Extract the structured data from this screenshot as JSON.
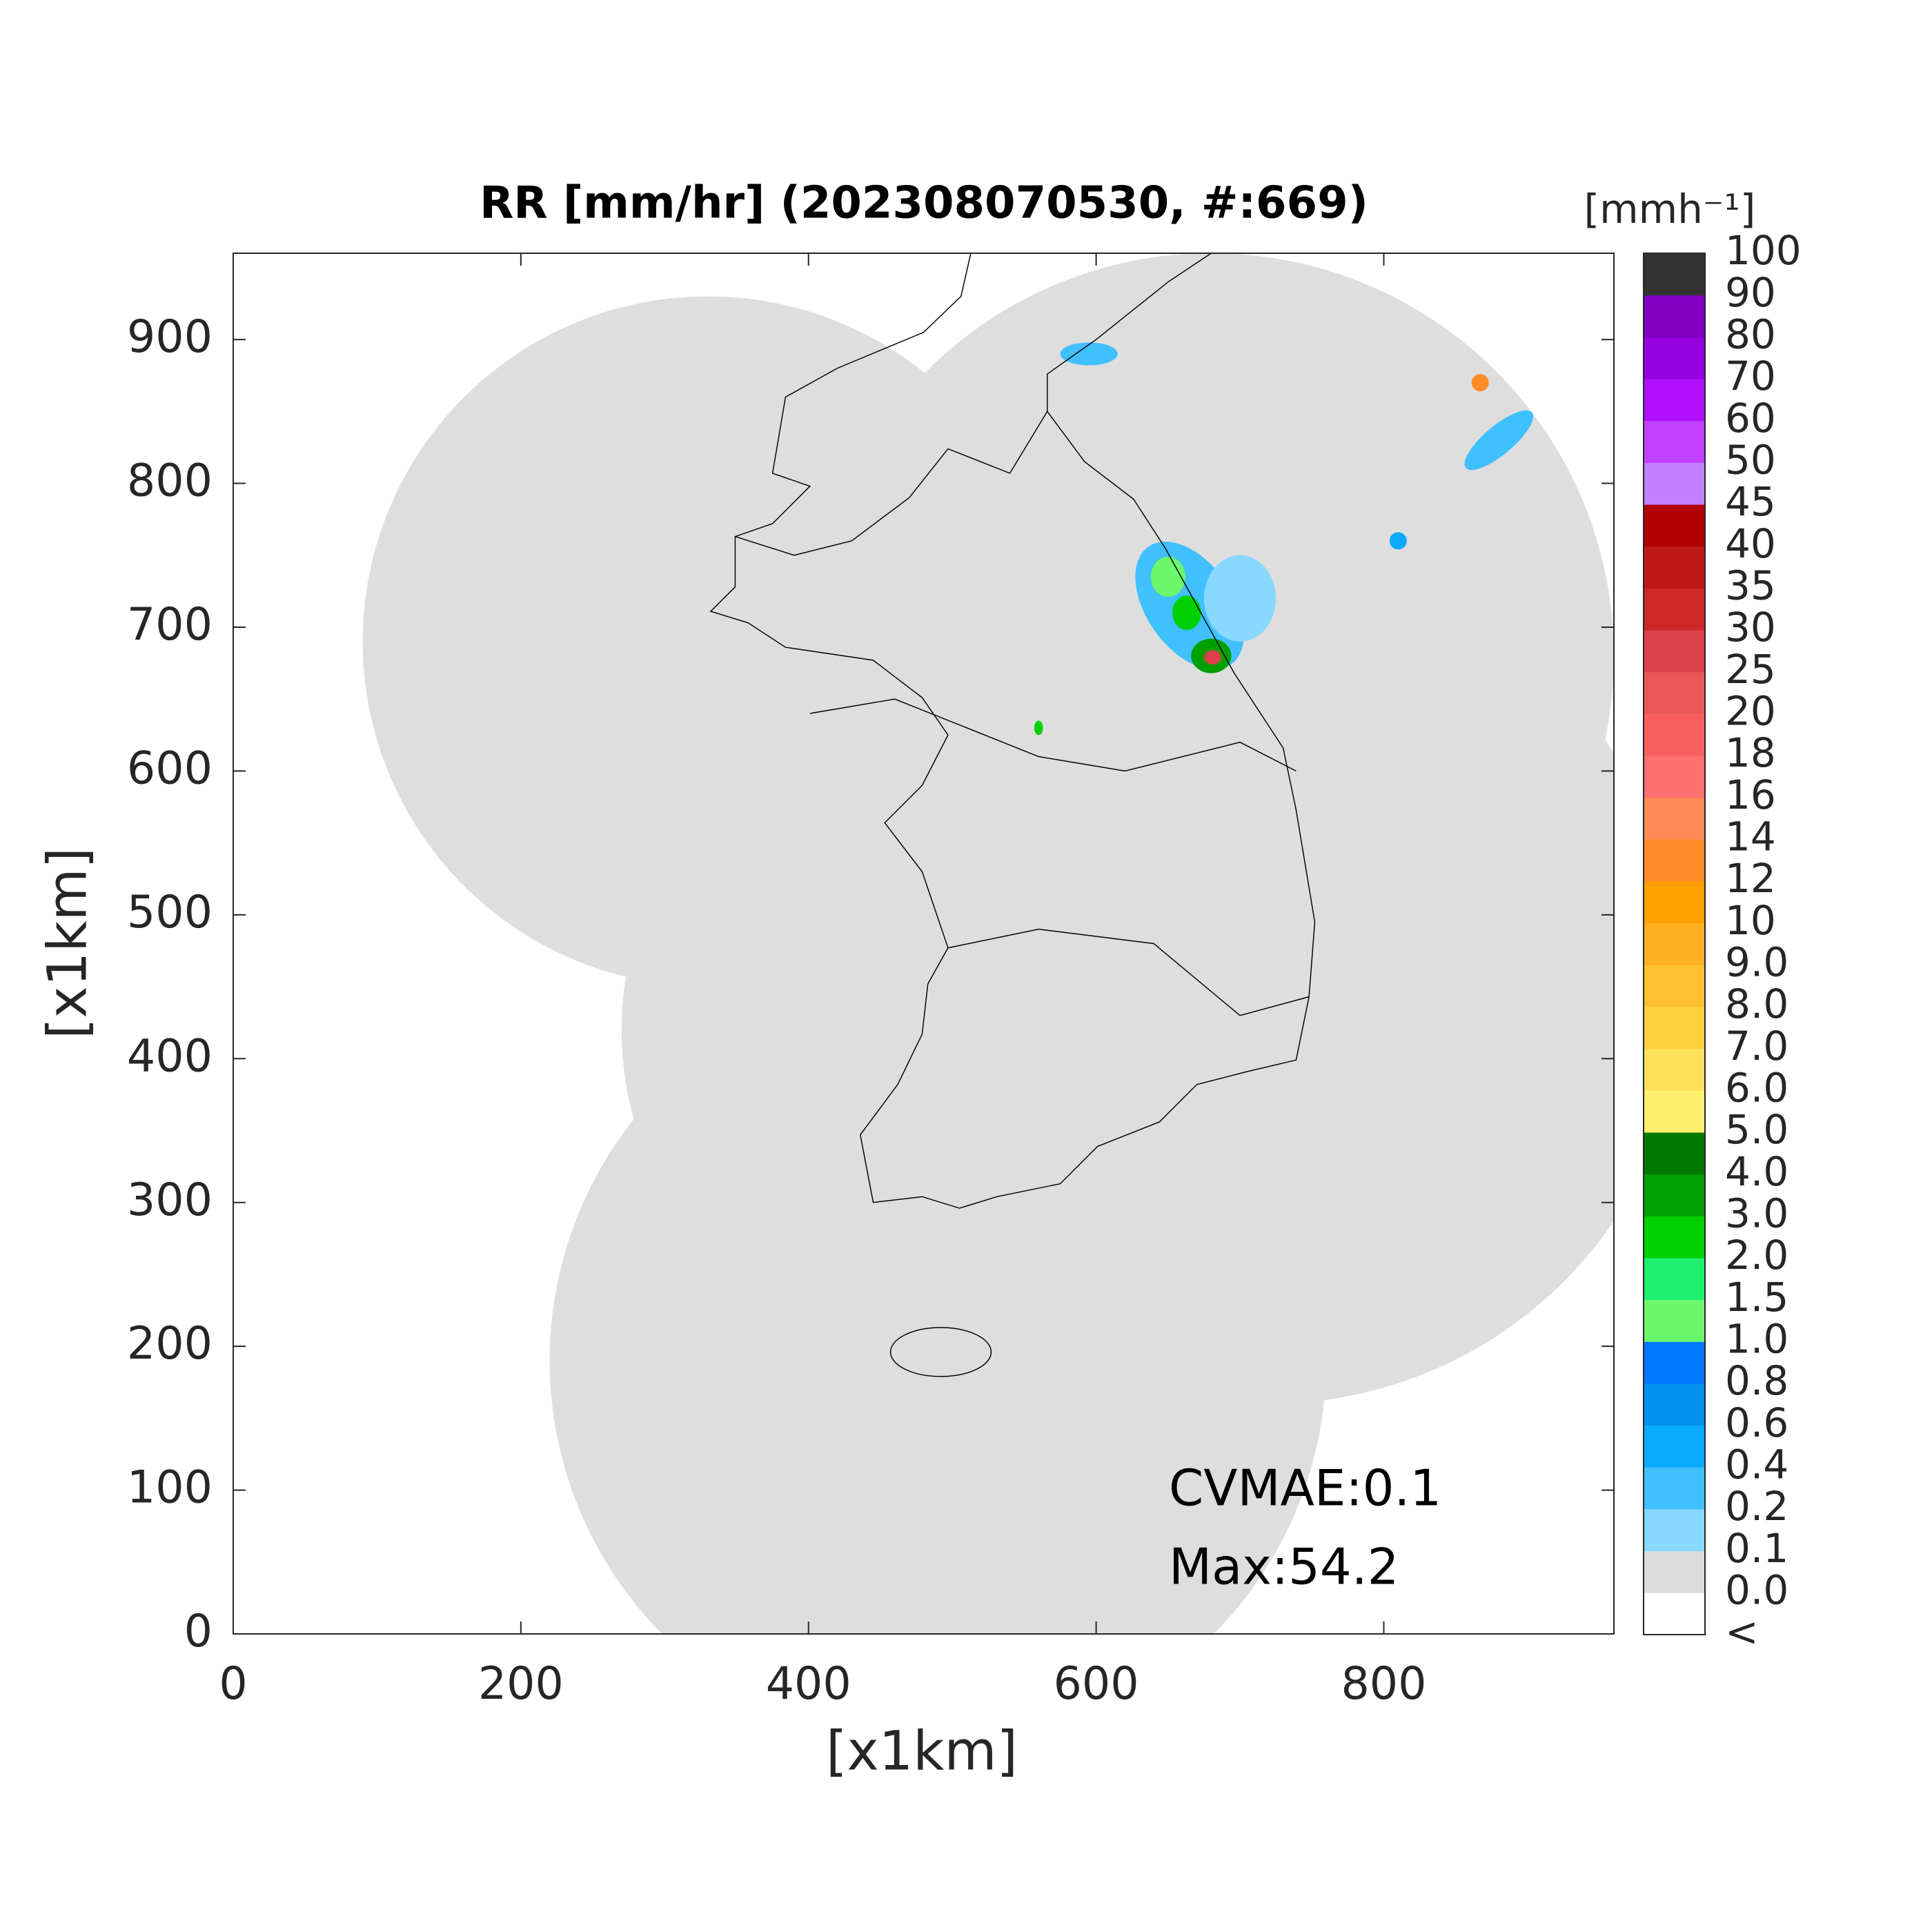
{
  "title": "RR [mm/hr] (202308070530, #:669)",
  "axes": {
    "xlabel": "[x1km]",
    "ylabel": "[x1km]",
    "xlim": [
      0,
      960
    ],
    "ylim": [
      0,
      960
    ],
    "xticks": [
      0,
      200,
      400,
      600,
      800
    ],
    "yticks": [
      0,
      100,
      200,
      300,
      400,
      500,
      600,
      700,
      800,
      900
    ]
  },
  "colorbar": {
    "label": "[mmh⁻¹]",
    "labels": [
      "<",
      "0.0",
      "0.1",
      "0.2",
      "0.4",
      "0.6",
      "0.8",
      "1.0",
      "1.5",
      "2.0",
      "3.0",
      "4.0",
      "5.0",
      "6.0",
      "7.0",
      "8.0",
      "9.0",
      "10",
      "12",
      "14",
      "16",
      "18",
      "20",
      "25",
      "30",
      "35",
      "40",
      "45",
      "50",
      "60",
      "70",
      "80",
      "90",
      "100"
    ],
    "colors": [
      "#ffffff",
      "#dcdcdc",
      "#88d8ff",
      "#40c0ff",
      "#0aaaff",
      "#0090f0",
      "#0078ff",
      "#6cf76c",
      "#20f070",
      "#00d000",
      "#00a000",
      "#007800",
      "#fff06e",
      "#ffe15a",
      "#ffd040",
      "#ffc030",
      "#ffb020",
      "#ffa000",
      "#ff8c28",
      "#ff8a58",
      "#ff7070",
      "#f86060",
      "#ea5858",
      "#dc4048",
      "#cc2828",
      "#bf1818",
      "#b00000",
      "#c080ff",
      "#c040ff",
      "#b010ff",
      "#9400e0",
      "#8000c0",
      "#333333"
    ]
  },
  "annotations": [
    "CVMAE:0.1",
    "Max:54.2"
  ]
}
